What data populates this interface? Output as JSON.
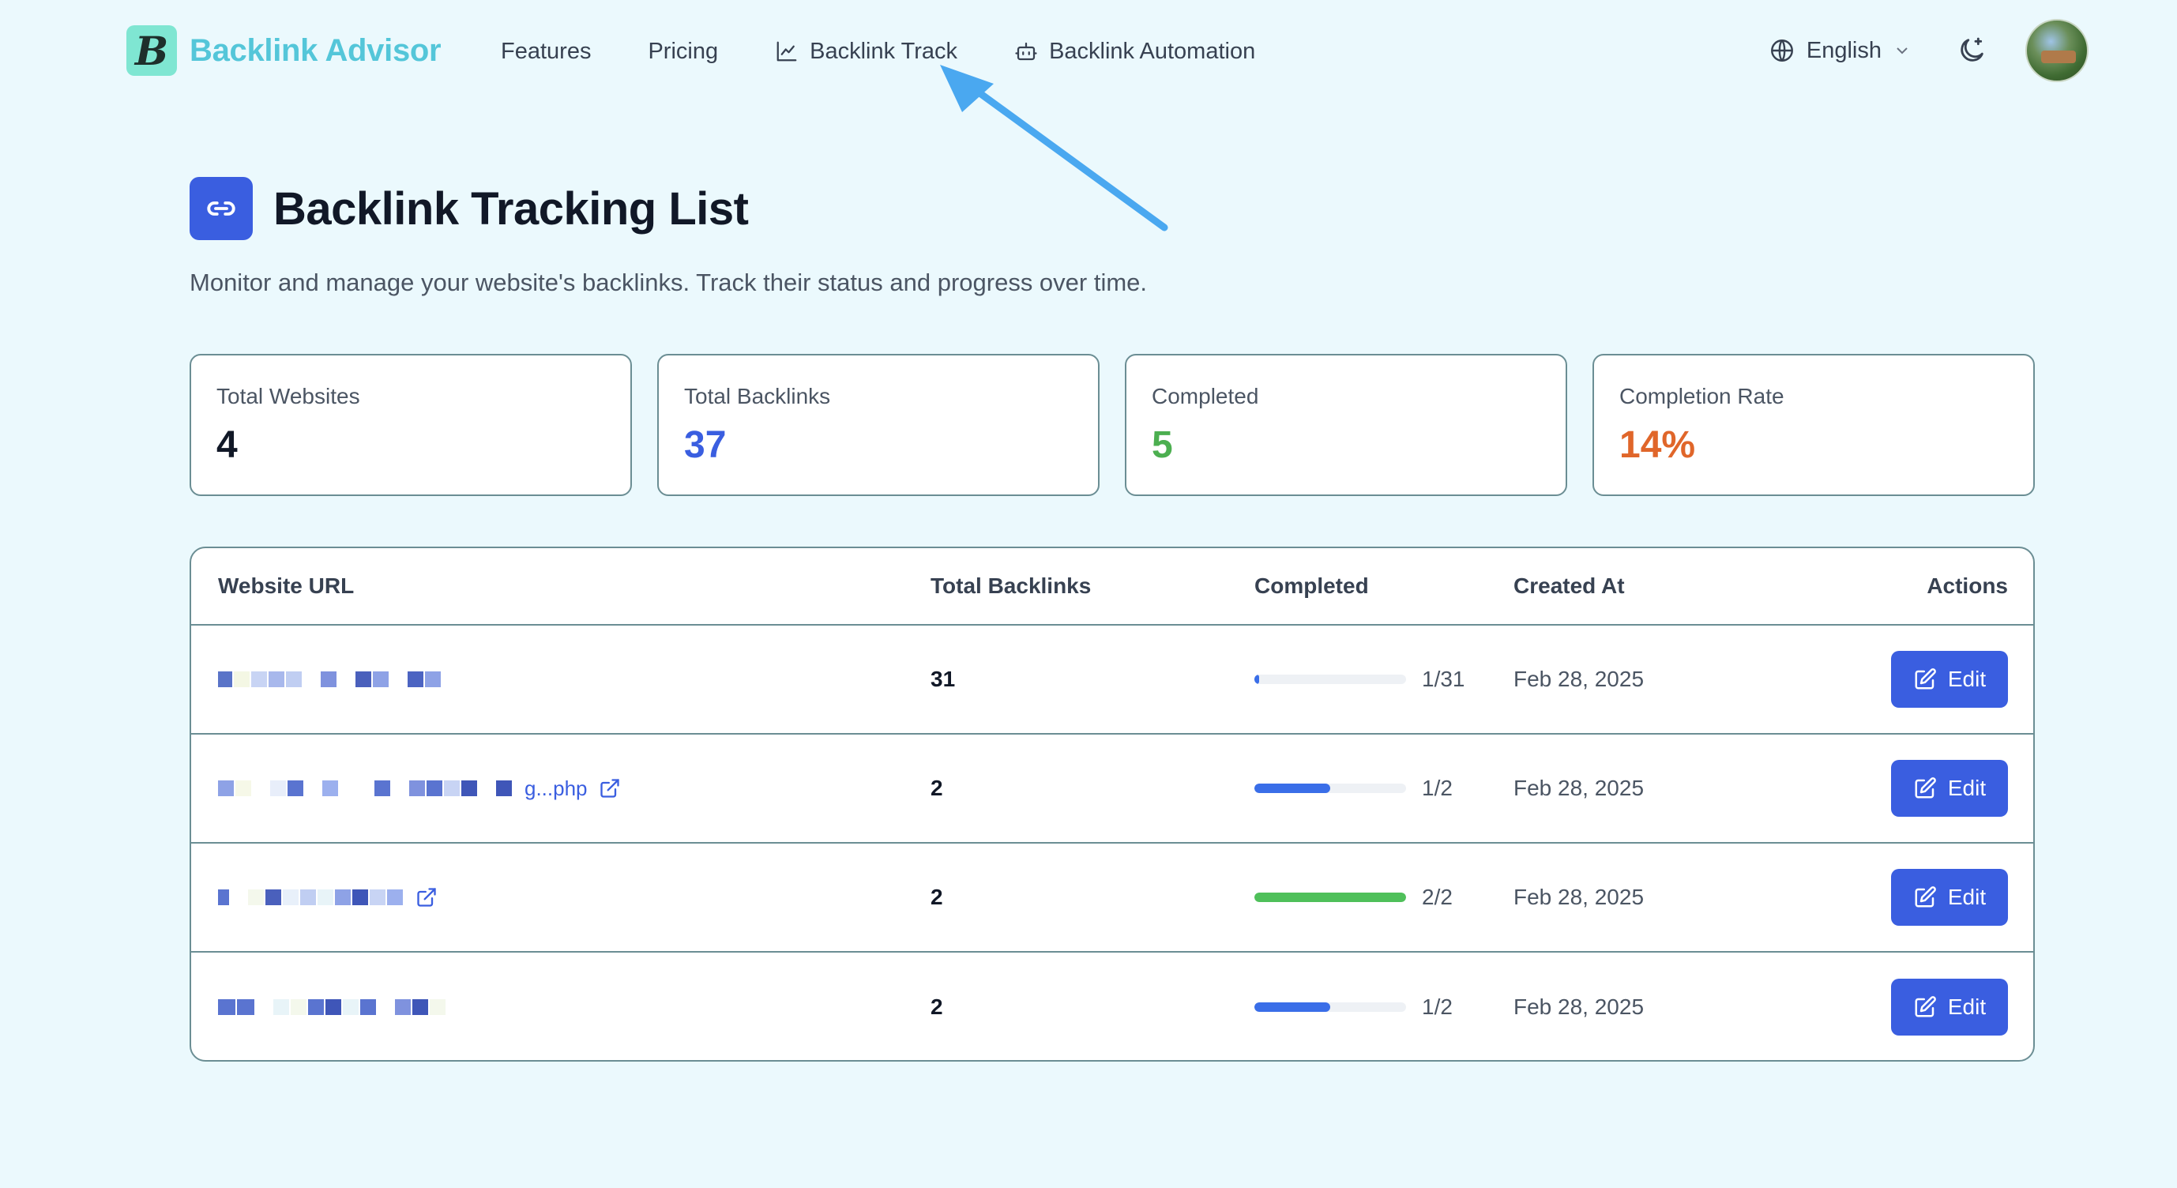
{
  "header": {
    "brand_logo_letter": "B",
    "brand_name": "Backlink Advisor",
    "nav": [
      {
        "label": "Features",
        "icon": null
      },
      {
        "label": "Pricing",
        "icon": null
      },
      {
        "label": "Backlink Track",
        "icon": "chart-line-icon"
      },
      {
        "label": "Backlink Automation",
        "icon": "robot-icon"
      }
    ],
    "language": "English",
    "theme_icon": "moon-stars-icon",
    "avatar_icon": "avatar"
  },
  "page": {
    "title": "Backlink Tracking List",
    "title_icon": "link-icon",
    "subtitle": "Monitor and manage your website's backlinks. Track their status and progress over time."
  },
  "stats": [
    {
      "label": "Total Websites",
      "value": "4",
      "color": "#111827"
    },
    {
      "label": "Total Backlinks",
      "value": "37",
      "color": "#3a5ee0"
    },
    {
      "label": "Completed",
      "value": "5",
      "color": "#4caf50"
    },
    {
      "label": "Completion Rate",
      "value": "14%",
      "color": "#e0662a"
    }
  ],
  "table": {
    "headers": {
      "url": "Website URL",
      "total": "Total Backlinks",
      "completed": "Completed",
      "created": "Created At",
      "actions": "Actions"
    },
    "rows": [
      {
        "url_tail": "",
        "total": "31",
        "completed": "1/31",
        "progress": 0.032,
        "bar_color": "#3a6ee8",
        "created": "Feb 28, 2025",
        "action": "Edit"
      },
      {
        "url_tail": "g...php",
        "total": "2",
        "completed": "1/2",
        "progress": 0.5,
        "bar_color": "#3a6ee8",
        "created": "Feb 28, 2025",
        "action": "Edit"
      },
      {
        "url_tail": "",
        "total": "2",
        "completed": "2/2",
        "progress": 1.0,
        "bar_color": "#4fc05a",
        "created": "Feb 28, 2025",
        "action": "Edit"
      },
      {
        "url_tail": "",
        "total": "2",
        "completed": "1/2",
        "progress": 0.5,
        "bar_color": "#3a6ee8",
        "created": "Feb 28, 2025",
        "action": "Edit"
      }
    ]
  },
  "colors": {
    "accent": "#3a5ee0",
    "brand": "#54c6d9",
    "background": "#ebf9fd",
    "annotation_arrow": "#4aa8f0"
  }
}
